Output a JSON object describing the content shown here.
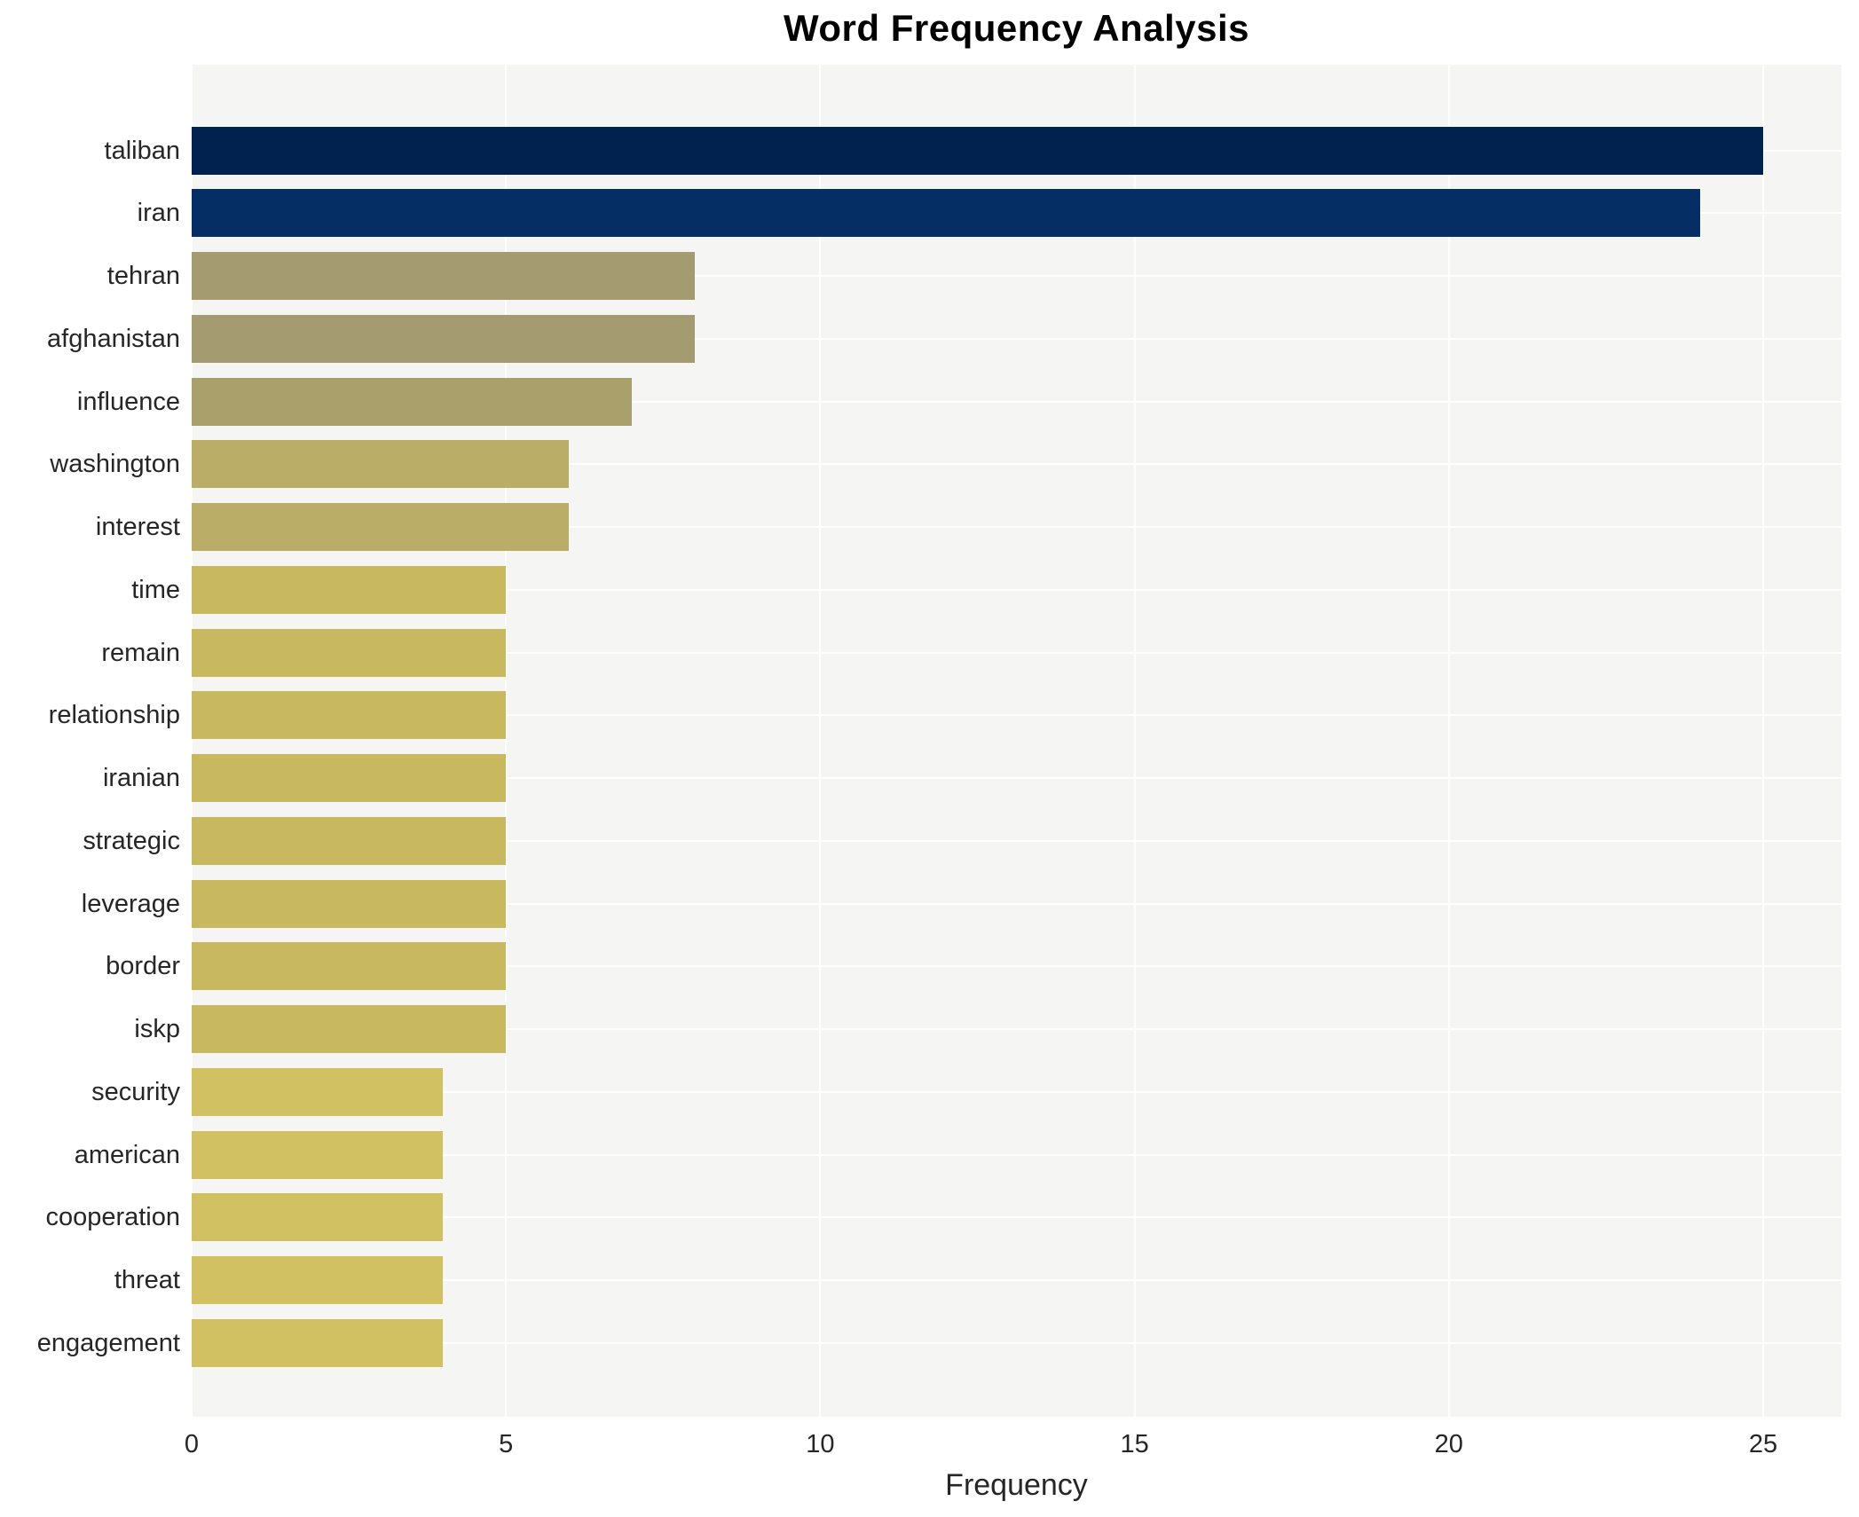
{
  "chart_data": {
    "type": "bar",
    "orientation": "horizontal",
    "title": "Word Frequency Analysis",
    "xlabel": "Frequency",
    "ylabel": "",
    "categories": [
      "taliban",
      "iran",
      "tehran",
      "afghanistan",
      "influence",
      "washington",
      "interest",
      "time",
      "remain",
      "relationship",
      "iranian",
      "strategic",
      "leverage",
      "border",
      "iskp",
      "security",
      "american",
      "cooperation",
      "threat",
      "engagement"
    ],
    "values": [
      25,
      24,
      8,
      8,
      7,
      6,
      6,
      5,
      5,
      5,
      5,
      5,
      5,
      5,
      5,
      4,
      4,
      4,
      4,
      4
    ],
    "bar_colors": [
      "#01224e",
      "#042e64",
      "#a59b71",
      "#a59b71",
      "#aaa06c",
      "#b9ad68",
      "#b9ad68",
      "#c8b961",
      "#c8b961",
      "#c8b961",
      "#c8b961",
      "#c8b961",
      "#c8b961",
      "#c8b961",
      "#c8b961",
      "#d1c162",
      "#d1c162",
      "#d1c162",
      "#d1c162",
      "#d1c162"
    ],
    "xticks": [
      0,
      5,
      10,
      15,
      20,
      25
    ],
    "xlim": [
      0,
      26.2
    ],
    "grid": true,
    "legend": "none",
    "plot_background": "#f5f5f3",
    "gridline_color": "#ffffff"
  }
}
